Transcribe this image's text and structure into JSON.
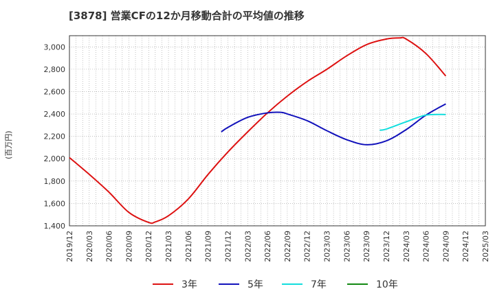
{
  "chart_title": "[3878]  営業CFの12か月移動合計の平均値の推移",
  "chart_data": {
    "type": "line",
    "title": "[3878]  営業CFの12か月移動合計の平均値の推移",
    "ylabel": "(百万円)",
    "xlabel": "",
    "ylim": [
      1400,
      3100
    ],
    "yticks": [
      1400,
      1600,
      1800,
      2000,
      2200,
      2400,
      2600,
      2800,
      3000
    ],
    "xticks": [
      "2019/12",
      "2020/03",
      "2020/06",
      "2020/09",
      "2020/12",
      "2021/03",
      "2021/06",
      "2021/09",
      "2021/12",
      "2022/03",
      "2022/06",
      "2022/09",
      "2022/12",
      "2023/03",
      "2023/06",
      "2023/09",
      "2023/12",
      "2024/03",
      "2024/06",
      "2024/09",
      "2024/12",
      "2025/03"
    ],
    "grid": true,
    "legend_position": "bottom",
    "series": [
      {
        "name": "3年",
        "color": "#dd1111",
        "points": [
          [
            "2019/12",
            2010
          ],
          [
            "2020/03",
            1860
          ],
          [
            "2020/06",
            1700
          ],
          [
            "2020/09",
            1520
          ],
          [
            "2020/12",
            1430
          ],
          [
            "2021/01",
            1435
          ],
          [
            "2021/03",
            1490
          ],
          [
            "2021/06",
            1640
          ],
          [
            "2021/09",
            1860
          ],
          [
            "2021/12",
            2060
          ],
          [
            "2022/03",
            2240
          ],
          [
            "2022/06",
            2410
          ],
          [
            "2022/09",
            2560
          ],
          [
            "2022/12",
            2690
          ],
          [
            "2023/03",
            2800
          ],
          [
            "2023/06",
            2920
          ],
          [
            "2023/09",
            3020
          ],
          [
            "2023/12",
            3070
          ],
          [
            "2024/02",
            3080
          ],
          [
            "2024/03",
            3070
          ],
          [
            "2024/06",
            2940
          ],
          [
            "2024/09",
            2740
          ]
        ]
      },
      {
        "name": "5年",
        "color": "#1111bb",
        "points": [
          [
            "2021/11",
            2240
          ],
          [
            "2021/12",
            2280
          ],
          [
            "2022/03",
            2370
          ],
          [
            "2022/06",
            2410
          ],
          [
            "2022/08",
            2415
          ],
          [
            "2022/09",
            2400
          ],
          [
            "2022/12",
            2340
          ],
          [
            "2023/03",
            2250
          ],
          [
            "2023/06",
            2170
          ],
          [
            "2023/09",
            2125
          ],
          [
            "2023/12",
            2160
          ],
          [
            "2024/03",
            2260
          ],
          [
            "2024/06",
            2390
          ],
          [
            "2024/09",
            2490
          ]
        ]
      },
      {
        "name": "7年",
        "color": "#11dddd",
        "points": [
          [
            "2023/11",
            2255
          ],
          [
            "2023/12",
            2265
          ],
          [
            "2024/03",
            2330
          ],
          [
            "2024/06",
            2390
          ],
          [
            "2024/09",
            2395
          ]
        ]
      },
      {
        "name": "10年",
        "color": "#118811",
        "points": []
      }
    ]
  }
}
